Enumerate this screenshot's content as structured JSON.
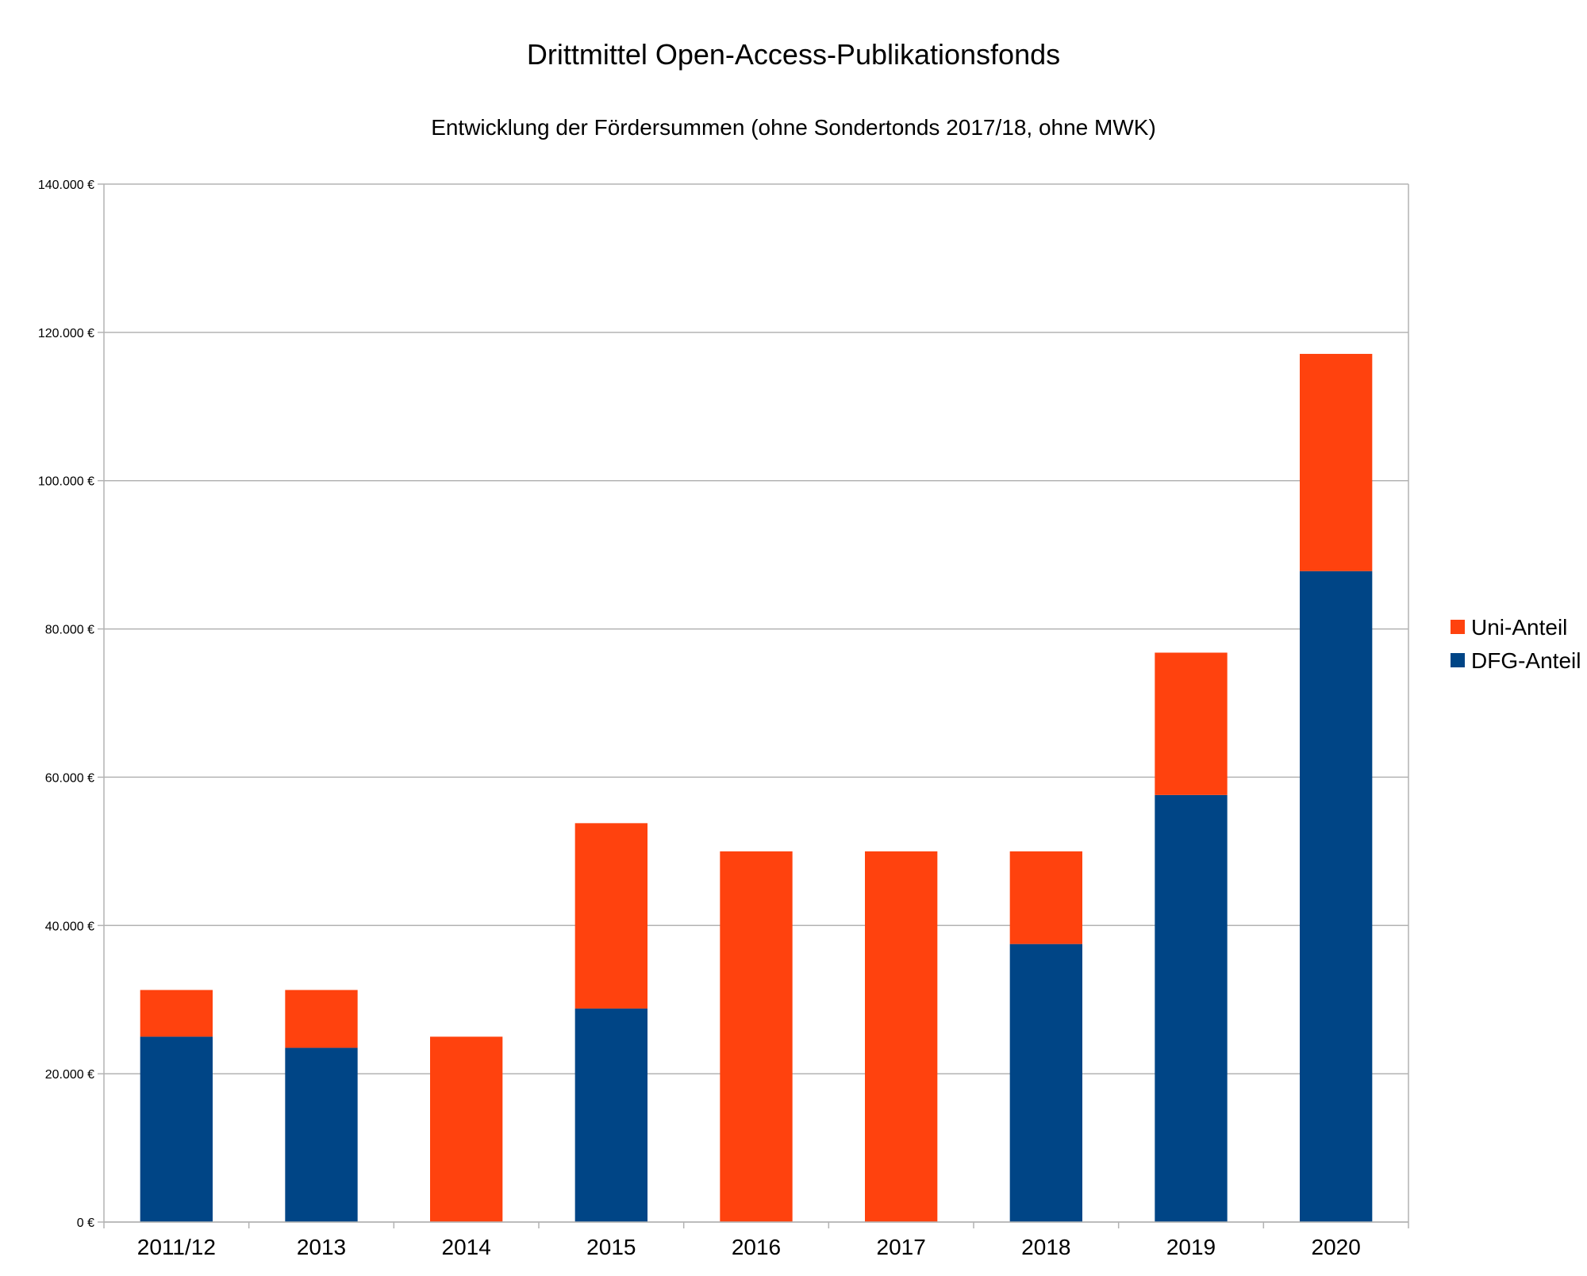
{
  "chart_data": {
    "type": "bar",
    "stacked": true,
    "title": "Drittmittel Open-Access-Publikationsfonds",
    "subtitle": "Entwicklung der Fördersummen (ohne Sondertonds 2017/18, ohne MWK)",
    "categories": [
      "2011/12",
      "2013",
      "2014",
      "2015",
      "2016",
      "2017",
      "2018",
      "2019",
      "2020"
    ],
    "series": [
      {
        "name": "DFG-Anteil",
        "color": "#004586",
        "values": [
          25000,
          23500,
          0,
          28800,
          0,
          0,
          37500,
          57600,
          87800
        ]
      },
      {
        "name": "Uni-Anteil",
        "color": "#ff420e",
        "values": [
          6300,
          7800,
          25000,
          25000,
          50000,
          50000,
          12500,
          19200,
          29300
        ]
      }
    ],
    "ylim": [
      0,
      140000
    ],
    "yticks": [
      0,
      20000,
      40000,
      60000,
      80000,
      100000,
      120000,
      140000
    ],
    "ytick_labels": [
      "0 €",
      "20.000 €",
      "40.000 €",
      "60.000 €",
      "80.000 €",
      "100.000 €",
      "120.000 €",
      "140.000 €"
    ],
    "legend": {
      "position": "right",
      "order": [
        "Uni-Anteil",
        "DFG-Anteil"
      ]
    },
    "grid": true,
    "grid_color": "#b3b3b3"
  }
}
